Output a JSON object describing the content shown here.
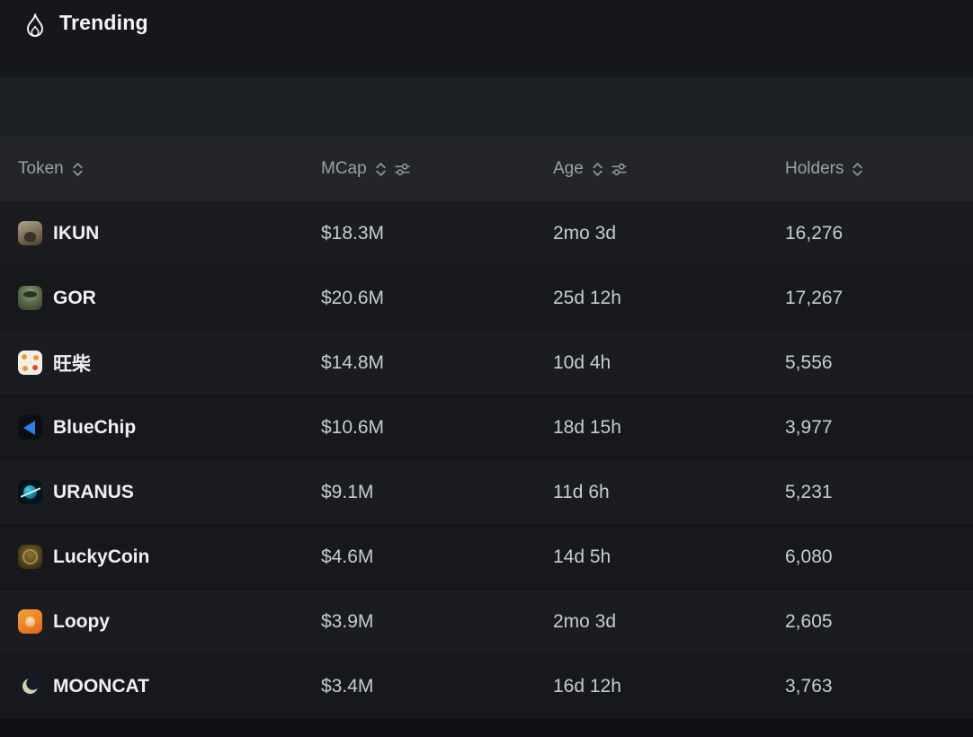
{
  "header": {
    "title": "Trending"
  },
  "table": {
    "columns": [
      {
        "key": "token",
        "label": "Token",
        "sortable": true,
        "filter": false
      },
      {
        "key": "mcap",
        "label": "MCap",
        "sortable": true,
        "filter": true
      },
      {
        "key": "age",
        "label": "Age",
        "sortable": true,
        "filter": true
      },
      {
        "key": "holders",
        "label": "Holders",
        "sortable": true,
        "filter": false
      }
    ],
    "rows": [
      {
        "token": "IKUN",
        "icon": "ikun",
        "mcap": "$18.3M",
        "age": "2mo 3d",
        "holders": "16,276"
      },
      {
        "token": "GOR",
        "icon": "gor",
        "mcap": "$20.6M",
        "age": "25d 12h",
        "holders": "17,267"
      },
      {
        "token": "旺柴",
        "icon": "wangchai",
        "mcap": "$14.8M",
        "age": "10d 4h",
        "holders": "5,556"
      },
      {
        "token": "BlueChip",
        "icon": "bluechip",
        "mcap": "$10.6M",
        "age": "18d 15h",
        "holders": "3,977"
      },
      {
        "token": "URANUS",
        "icon": "uranus",
        "mcap": "$9.1M",
        "age": "11d 6h",
        "holders": "5,231"
      },
      {
        "token": "LuckyCoin",
        "icon": "luckycoin",
        "mcap": "$4.6M",
        "age": "14d 5h",
        "holders": "6,080"
      },
      {
        "token": "Loopy",
        "icon": "loopy",
        "mcap": "$3.9M",
        "age": "2mo 3d",
        "holders": "2,605"
      },
      {
        "token": "MOONCAT",
        "icon": "mooncat",
        "mcap": "$3.4M",
        "age": "16d 12h",
        "holders": "3,763"
      }
    ]
  },
  "colors": {
    "background": "#15171a",
    "row_alt": "#1a1c20",
    "text_muted": "#9aa1ab"
  }
}
